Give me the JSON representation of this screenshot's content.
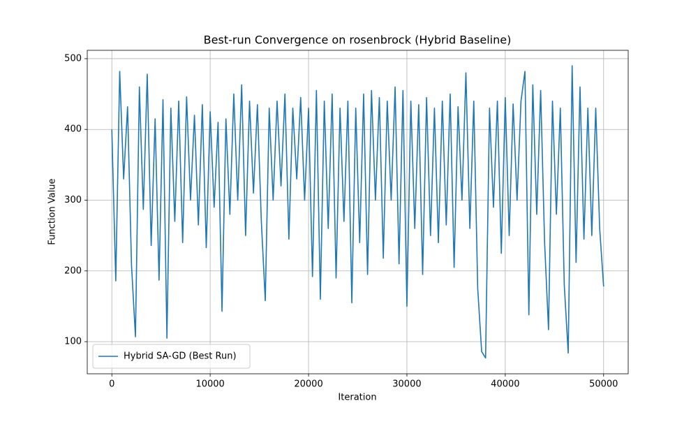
{
  "chart_data": {
    "type": "line",
    "title": "Best-run Convergence on rosenbrock (Hybrid Baseline)",
    "x_label": "Iteration",
    "y_label": "Function Value",
    "x": [
      0,
      400,
      800,
      1200,
      1600,
      2000,
      2400,
      2800,
      3200,
      3600,
      4000,
      4400,
      4800,
      5200,
      5600,
      6000,
      6400,
      6800,
      7200,
      7600,
      8000,
      8400,
      8800,
      9200,
      9600,
      10000,
      10400,
      10800,
      11200,
      11600,
      12000,
      12400,
      12800,
      13200,
      13600,
      14000,
      14400,
      14800,
      15200,
      15600,
      16000,
      16400,
      16800,
      17200,
      17600,
      18000,
      18400,
      18800,
      19200,
      19600,
      20000,
      20400,
      20800,
      21200,
      21600,
      22000,
      22400,
      22800,
      23200,
      23600,
      24000,
      24400,
      24800,
      25200,
      25600,
      26000,
      26400,
      26800,
      27200,
      27600,
      28000,
      28400,
      28800,
      29200,
      29600,
      30000,
      30400,
      30800,
      31200,
      31600,
      32000,
      32400,
      32800,
      33200,
      33600,
      34000,
      34400,
      34800,
      35200,
      35600,
      36000,
      36400,
      36800,
      37200,
      37600,
      38000,
      38400,
      38800,
      39200,
      39600,
      40000,
      40400,
      40800,
      41200,
      41600,
      42000,
      42400,
      42800,
      43200,
      43600,
      44000,
      44400,
      44800,
      45200,
      45600,
      46000,
      46400,
      46800,
      47200,
      47600,
      48000,
      48400,
      48800,
      49200,
      49600,
      50000
    ],
    "series": [
      {
        "name": "Hybrid SA-GD (Best Run)",
        "color": "#1f77b4",
        "values": [
          400,
          186,
          482,
          330,
          432,
          208,
          107,
          460,
          287,
          478,
          236,
          415,
          187,
          442,
          105,
          430,
          270,
          440,
          240,
          446,
          300,
          420,
          265,
          435,
          233,
          425,
          290,
          410,
          143,
          415,
          280,
          450,
          300,
          463,
          250,
          440,
          310,
          435,
          270,
          158,
          430,
          300,
          440,
          320,
          450,
          245,
          430,
          330,
          445,
          300,
          430,
          192,
          455,
          160,
          440,
          260,
          450,
          190,
          430,
          270,
          440,
          155,
          430,
          240,
          450,
          195,
          455,
          300,
          445,
          218,
          440,
          300,
          460,
          210,
          455,
          150,
          440,
          260,
          435,
          195,
          445,
          250,
          430,
          240,
          440,
          265,
          450,
          205,
          432,
          300,
          480,
          260,
          440,
          175,
          86,
          77,
          430,
          290,
          440,
          225,
          445,
          250,
          436,
          300,
          440,
          482,
          138,
          463,
          280,
          455,
          240,
          117,
          440,
          280,
          430,
          180,
          84,
          490,
          212,
          460,
          245,
          430,
          250,
          430,
          260,
          178
        ]
      }
    ],
    "xlim": [
      -2500,
      52500
    ],
    "ylim": [
      54.6,
      511.8
    ],
    "xticks": [
      0,
      10000,
      20000,
      30000,
      40000,
      50000
    ],
    "yticks": [
      100,
      200,
      300,
      400,
      500
    ],
    "grid": true,
    "legend": "lower left"
  }
}
